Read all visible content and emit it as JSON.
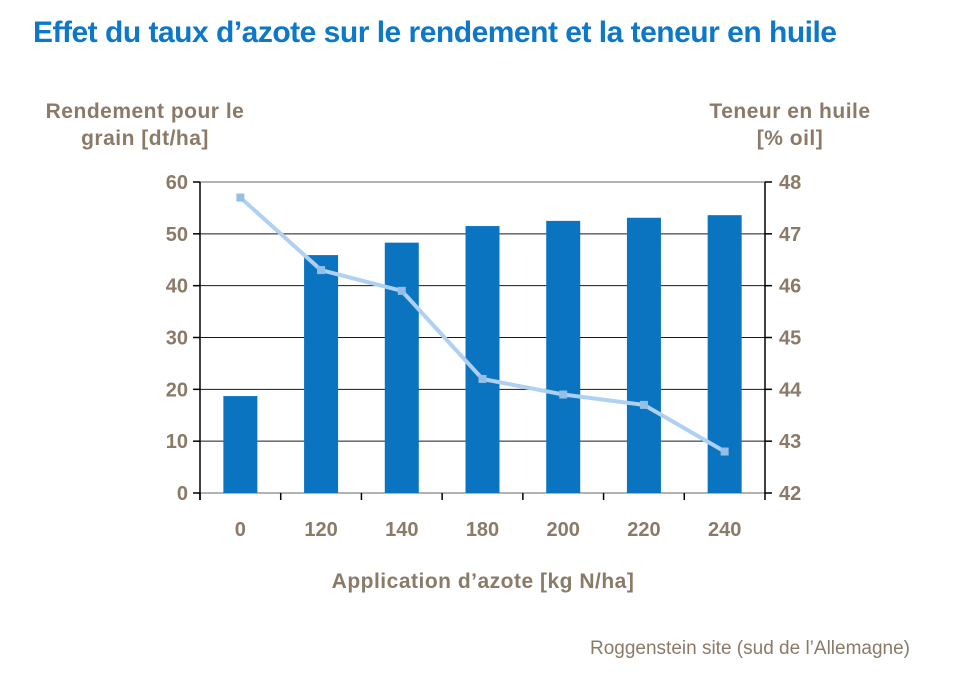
{
  "title": "Effet du taux d’azote sur le rendement et la teneur en huile",
  "left_axis_title": "Rendement pour le\ngrain [dt/ha]",
  "right_axis_title": "Teneur en huile\n[% oil]",
  "x_axis_title": "Application d’azote [kg N/ha]",
  "footer": "Roggenstein site (sud de l’Allemagne)",
  "colors": {
    "title_blue": "#0d78c9",
    "bar_blue": "#0b74c0",
    "line_light_blue": "#aed0f2",
    "marker_blue": "#93bfe9",
    "label_brown": "#8a7a67",
    "gridline": "#1a1a1a",
    "frame_gray": "#9a9a9a"
  },
  "chart_data": {
    "type": "bar",
    "categories": [
      "0",
      "120",
      "140",
      "180",
      "200",
      "220",
      "240"
    ],
    "series": [
      {
        "name": "Rendement pour le grain [dt/ha]",
        "type": "bar",
        "axis": "left",
        "values": [
          18.7,
          45.9,
          48.3,
          51.5,
          52.5,
          53.1,
          53.6
        ]
      },
      {
        "name": "Teneur en huile [% oil]",
        "type": "line",
        "axis": "right",
        "values": [
          47.7,
          46.3,
          45.9,
          44.2,
          43.9,
          43.7,
          42.8
        ]
      }
    ],
    "xlabel": "Application d’azote [kg N/ha]",
    "ylabel_left": "Rendement pour le grain [dt/ha]",
    "ylabel_right": "Teneur en huile [% oil]",
    "y_left": {
      "min": 0,
      "max": 60,
      "step": 10
    },
    "y_right": {
      "min": 42,
      "max": 48,
      "step": 1
    },
    "grid": true,
    "legend": "none"
  }
}
